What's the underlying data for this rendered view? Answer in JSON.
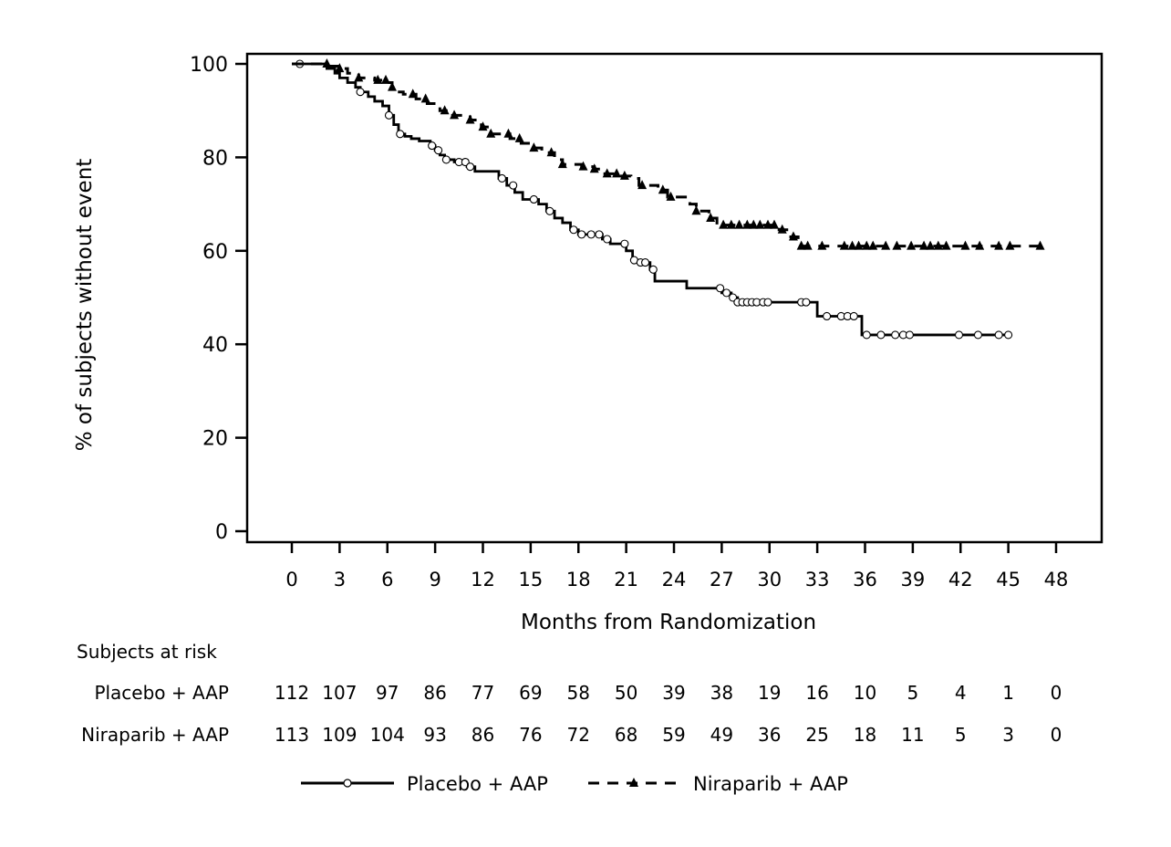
{
  "chart_data": {
    "type": "line",
    "subtype": "kaplan-meier",
    "title": "",
    "xlabel": "Months from Randomization",
    "ylabel": "% of subjects without event",
    "xlim": [
      0,
      48
    ],
    "ylim": [
      0,
      100
    ],
    "x_ticks": [
      0,
      3,
      6,
      9,
      12,
      15,
      18,
      21,
      24,
      27,
      30,
      33,
      36,
      39,
      42,
      45,
      48
    ],
    "y_ticks": [
      0,
      20,
      40,
      60,
      80,
      100
    ],
    "grid": false,
    "legend_position": "bottom",
    "series": [
      {
        "name": "Placebo + AAP",
        "line_style": "solid",
        "marker": "circle",
        "steps": [
          [
            0,
            100
          ],
          [
            1.8,
            100
          ],
          [
            2.2,
            99
          ],
          [
            2.7,
            98
          ],
          [
            3.0,
            97
          ],
          [
            3.5,
            96
          ],
          [
            4.0,
            95
          ],
          [
            4.3,
            94
          ],
          [
            4.8,
            93
          ],
          [
            5.2,
            92
          ],
          [
            5.7,
            91
          ],
          [
            6.1,
            89
          ],
          [
            6.4,
            87
          ],
          [
            6.7,
            85
          ],
          [
            7.1,
            84.5
          ],
          [
            7.5,
            84
          ],
          [
            8.0,
            83.5
          ],
          [
            8.7,
            82.5
          ],
          [
            9.0,
            81.5
          ],
          [
            9.3,
            80.5
          ],
          [
            9.6,
            79.5
          ],
          [
            10.2,
            79
          ],
          [
            11.0,
            78
          ],
          [
            11.5,
            77
          ],
          [
            13.0,
            75.5
          ],
          [
            13.5,
            74
          ],
          [
            14.0,
            72.5
          ],
          [
            14.5,
            71
          ],
          [
            15.5,
            70
          ],
          [
            16.0,
            68.5
          ],
          [
            16.5,
            67
          ],
          [
            17.0,
            66
          ],
          [
            17.5,
            64.5
          ],
          [
            18.0,
            63.5
          ],
          [
            19.5,
            62.5
          ],
          [
            20.0,
            61.5
          ],
          [
            21.0,
            60
          ],
          [
            21.4,
            58
          ],
          [
            21.8,
            57.5
          ],
          [
            22.5,
            56
          ],
          [
            22.8,
            53.5
          ],
          [
            24.8,
            52
          ],
          [
            27.0,
            51
          ],
          [
            27.6,
            50
          ],
          [
            28.0,
            49
          ],
          [
            33.0,
            46
          ],
          [
            35.8,
            42
          ],
          [
            45,
            42
          ]
        ],
        "censor_x": [
          0.5,
          4.3,
          6.1,
          6.8,
          8.8,
          9.2,
          9.7,
          10.5,
          10.9,
          11.2,
          13.2,
          13.9,
          15.2,
          16.2,
          17.7,
          18.2,
          18.8,
          19.3,
          19.8,
          20.9,
          21.5,
          21.9,
          22.2,
          22.7,
          26.9,
          27.3,
          27.7,
          28.0,
          28.3,
          28.6,
          28.9,
          29.2,
          29.6,
          29.9,
          32.0,
          32.3,
          33.6,
          34.5,
          34.9,
          35.3,
          36.1,
          37.0,
          37.9,
          38.4,
          38.8,
          41.9,
          43.1,
          44.4,
          45.0
        ],
        "at_risk": [
          112,
          107,
          97,
          86,
          77,
          69,
          58,
          50,
          39,
          38,
          19,
          16,
          10,
          5,
          4,
          1,
          0
        ]
      },
      {
        "name": "Niraparib + AAP",
        "line_style": "dashed",
        "marker": "triangle",
        "steps": [
          [
            0,
            100
          ],
          [
            2.3,
            99.5
          ],
          [
            3.0,
            99
          ],
          [
            3.5,
            98
          ],
          [
            4.2,
            97
          ],
          [
            5.2,
            96.5
          ],
          [
            6.0,
            96
          ],
          [
            6.3,
            95
          ],
          [
            6.6,
            94
          ],
          [
            7.0,
            93.5
          ],
          [
            7.8,
            92.5
          ],
          [
            8.5,
            91.5
          ],
          [
            9.3,
            90
          ],
          [
            10.0,
            89
          ],
          [
            11.2,
            88
          ],
          [
            11.9,
            86.5
          ],
          [
            12.5,
            85
          ],
          [
            13.7,
            84
          ],
          [
            14.4,
            83
          ],
          [
            15.0,
            82
          ],
          [
            15.7,
            81
          ],
          [
            16.5,
            79.5
          ],
          [
            17.0,
            78.5
          ],
          [
            18.2,
            78
          ],
          [
            19.0,
            77.5
          ],
          [
            19.5,
            76.5
          ],
          [
            20.6,
            76
          ],
          [
            21.3,
            75.5
          ],
          [
            21.8,
            74
          ],
          [
            23.0,
            73
          ],
          [
            23.6,
            71.5
          ],
          [
            25.0,
            70
          ],
          [
            25.4,
            68.5
          ],
          [
            26.2,
            67
          ],
          [
            26.7,
            65.5
          ],
          [
            30.6,
            64.5
          ],
          [
            31.2,
            63
          ],
          [
            31.8,
            61
          ],
          [
            47,
            61
          ]
        ],
        "censor_x": [
          2.2,
          3.0,
          4.2,
          5.4,
          5.9,
          6.3,
          7.6,
          8.4,
          9.6,
          10.2,
          11.2,
          12.0,
          12.5,
          13.6,
          14.3,
          15.2,
          16.3,
          17.0,
          18.3,
          19.0,
          19.8,
          20.4,
          20.9,
          22.0,
          23.3,
          23.8,
          25.4,
          26.3,
          27.1,
          27.6,
          28.1,
          28.6,
          29.0,
          29.4,
          29.9,
          30.3,
          30.8,
          31.5,
          32.0,
          32.4,
          33.3,
          34.7,
          35.2,
          35.6,
          36.1,
          36.5,
          37.3,
          38.0,
          38.9,
          39.7,
          40.1,
          40.6,
          41.1,
          42.3,
          43.2,
          44.4,
          45.1,
          47.0
        ],
        "at_risk": [
          113,
          109,
          104,
          93,
          86,
          76,
          72,
          68,
          59,
          49,
          36,
          25,
          18,
          11,
          5,
          3,
          0
        ]
      }
    ]
  },
  "risk_table": {
    "header": "Subjects at risk",
    "row_labels": [
      "Placebo + AAP",
      "Niraparib + AAP"
    ]
  }
}
